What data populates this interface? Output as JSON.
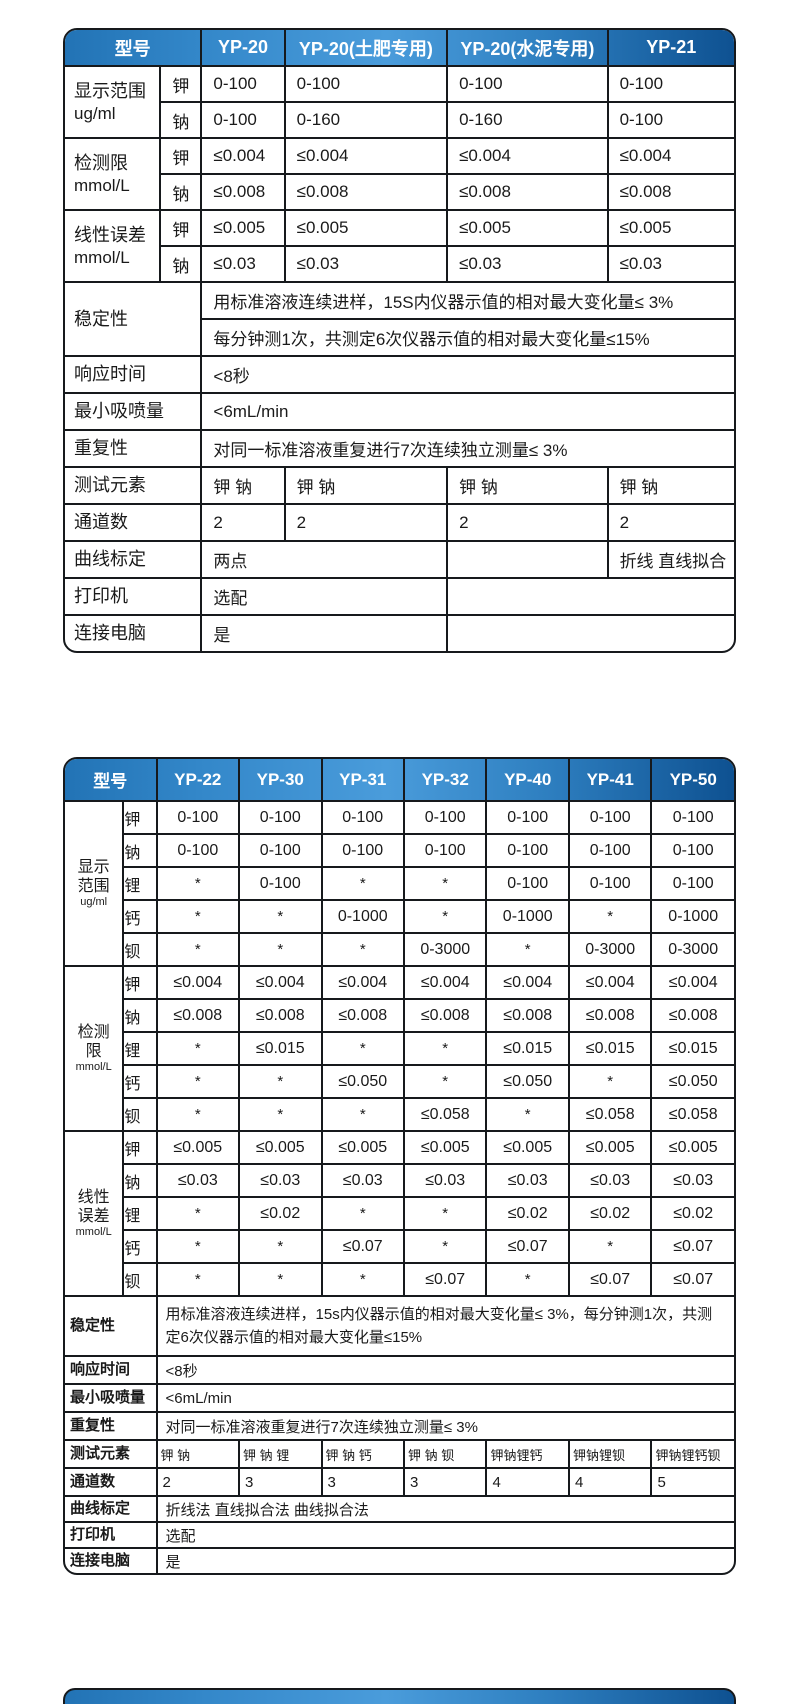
{
  "colors": {
    "background": "#ffffff",
    "border": "#16191c",
    "text": "#1a1a1a",
    "header_blue_left": "#2273b5",
    "header_blue_light": "#4a9cdb",
    "header_blue_right": "#0e5191",
    "header_text": "#ffffff"
  },
  "table1": {
    "model_label": "型号",
    "models": [
      "YP-20",
      "YP-20(土肥专用)",
      "YP-20(水泥专用)",
      "YP-21"
    ],
    "sections": [
      {
        "label_lines": [
          "显示范围"
        ],
        "unit": "ug/ml",
        "rows": [
          {
            "element": "钾",
            "values": [
              "0-100",
              "0-100",
              "0-100",
              "0-100"
            ]
          },
          {
            "element": "钠",
            "values": [
              "0-100",
              "0-160",
              "0-160",
              "0-100"
            ]
          }
        ]
      },
      {
        "label_lines": [
          "检测限"
        ],
        "unit": "mmol/L",
        "rows": [
          {
            "element": "钾",
            "values": [
              "≤0.004",
              "≤0.004",
              "≤0.004",
              "≤0.004"
            ]
          },
          {
            "element": "钠",
            "values": [
              "≤0.008",
              "≤0.008",
              "≤0.008",
              "≤0.008"
            ]
          }
        ]
      },
      {
        "label_lines": [
          "线性误差"
        ],
        "unit": "mmol/L",
        "rows": [
          {
            "element": "钾",
            "values": [
              "≤0.005",
              "≤0.005",
              "≤0.005",
              "≤0.005"
            ]
          },
          {
            "element": "钠",
            "values": [
              "≤0.03",
              "≤0.03",
              "≤0.03",
              "≤0.03"
            ]
          }
        ]
      }
    ],
    "stability": {
      "label": "稳定性",
      "lines": [
        "用标准溶液连续进样，15S内仪器示值的相对最大变化量≤ 3%",
        "每分钟测1次，共测定6次仪器示值的相对最大变化量≤15%"
      ]
    },
    "simple_rows": [
      {
        "label": "响应时间",
        "value": "<8秒"
      },
      {
        "label": "最小吸喷量",
        "value": "<6mL/min"
      },
      {
        "label": "重复性",
        "value": "对同一标准溶液重复进行7次连续独立测量≤ 3%"
      }
    ],
    "elements_row": {
      "label": "测试元素",
      "values": [
        "钾 钠",
        "钾 钠",
        "钾 钠",
        "钾 钠"
      ]
    },
    "channels_row": {
      "label": "通道数",
      "values": [
        "2",
        "2",
        "2",
        "2"
      ]
    },
    "calibration_row": {
      "label": "曲线标定",
      "cells": [
        {
          "text": "两点",
          "span": 2
        },
        {
          "text": "",
          "span": 1
        },
        {
          "text": "折线 直线拟合",
          "span": 1
        }
      ]
    },
    "printer_row": {
      "label": "打印机",
      "cells": [
        {
          "text": "选配",
          "span": 2
        },
        {
          "text": "",
          "span": 2
        }
      ]
    },
    "pc_row": {
      "label": "连接电脑",
      "cells": [
        {
          "text": "是",
          "span": 2
        },
        {
          "text": "",
          "span": 2
        }
      ]
    }
  },
  "table2": {
    "model_label": "型号",
    "models": [
      "YP-22",
      "YP-30",
      "YP-31",
      "YP-32",
      "YP-40",
      "YP-41",
      "YP-50"
    ],
    "sections": [
      {
        "label_lines": [
          "显示",
          "范围"
        ],
        "unit": "ug/ml",
        "rows": [
          {
            "element": "钾",
            "values": [
              "0-100",
              "0-100",
              "0-100",
              "0-100",
              "0-100",
              "0-100",
              "0-100"
            ]
          },
          {
            "element": "钠",
            "values": [
              "0-100",
              "0-100",
              "0-100",
              "0-100",
              "0-100",
              "0-100",
              "0-100"
            ]
          },
          {
            "element": "锂",
            "values": [
              "*",
              "0-100",
              "*",
              "*",
              "0-100",
              "0-100",
              "0-100"
            ]
          },
          {
            "element": "钙",
            "values": [
              "*",
              "*",
              "0-1000",
              "*",
              "0-1000",
              "*",
              "0-1000"
            ]
          },
          {
            "element": "钡",
            "values": [
              "*",
              "*",
              "*",
              "0-3000",
              "*",
              "0-3000",
              "0-3000"
            ]
          }
        ]
      },
      {
        "label_lines": [
          "检测",
          "限"
        ],
        "unit": "mmol/L",
        "rows": [
          {
            "element": "钾",
            "values": [
              "≤0.004",
              "≤0.004",
              "≤0.004",
              "≤0.004",
              "≤0.004",
              "≤0.004",
              "≤0.004"
            ]
          },
          {
            "element": "钠",
            "values": [
              "≤0.008",
              "≤0.008",
              "≤0.008",
              "≤0.008",
              "≤0.008",
              "≤0.008",
              "≤0.008"
            ]
          },
          {
            "element": "锂",
            "values": [
              "*",
              "≤0.015",
              "*",
              "*",
              "≤0.015",
              "≤0.015",
              "≤0.015"
            ]
          },
          {
            "element": "钙",
            "values": [
              "*",
              "*",
              "≤0.050",
              "*",
              "≤0.050",
              "*",
              "≤0.050"
            ]
          },
          {
            "element": "钡",
            "values": [
              "*",
              "*",
              "*",
              "≤0.058",
              "*",
              "≤0.058",
              "≤0.058"
            ]
          }
        ]
      },
      {
        "label_lines": [
          "线性",
          "误差"
        ],
        "unit": "mmol/L",
        "rows": [
          {
            "element": "钾",
            "values": [
              "≤0.005",
              "≤0.005",
              "≤0.005",
              "≤0.005",
              "≤0.005",
              "≤0.005",
              "≤0.005"
            ]
          },
          {
            "element": "钠",
            "values": [
              "≤0.03",
              "≤0.03",
              "≤0.03",
              "≤0.03",
              "≤0.03",
              "≤0.03",
              "≤0.03"
            ]
          },
          {
            "element": "锂",
            "values": [
              "*",
              "≤0.02",
              "*",
              "*",
              "≤0.02",
              "≤0.02",
              "≤0.02"
            ]
          },
          {
            "element": "钙",
            "values": [
              "*",
              "*",
              "≤0.07",
              "*",
              "≤0.07",
              "*",
              "≤0.07"
            ]
          },
          {
            "element": "钡",
            "values": [
              "*",
              "*",
              "*",
              "≤0.07",
              "*",
              "≤0.07",
              "≤0.07"
            ]
          }
        ]
      }
    ],
    "stability": {
      "label": "稳定性",
      "text": "用标准溶液连续进样，15s内仪器示值的相对最大变化量≤ 3%，每分钟测1次，共测定6次仪器示值的相对最大变化量≤15%"
    },
    "simple_rows": [
      {
        "label": "响应时间",
        "value": "<8秒"
      },
      {
        "label": "最小吸喷量",
        "value": "<6mL/min"
      },
      {
        "label": "重复性",
        "value": "对同一标准溶液重复进行7次连续独立测量≤ 3%"
      }
    ],
    "elements_row": {
      "label": "测试元素",
      "values": [
        "钾 钠",
        "钾 钠 锂",
        "钾 钠 钙",
        "钾 钠 钡",
        "钾钠锂钙",
        "钾钠锂钡",
        "钾钠锂钙钡"
      ]
    },
    "channels_row": {
      "label": "通道数",
      "values": [
        "2",
        "3",
        "3",
        "3",
        "4",
        "4",
        "5"
      ]
    },
    "calibration_row": {
      "label": "曲线标定",
      "value": "折线法  直线拟合法 曲线拟合法"
    },
    "printer_row": {
      "label": "打印机",
      "value": "选配"
    },
    "pc_row": {
      "label": "连接电脑",
      "value": "是"
    }
  }
}
